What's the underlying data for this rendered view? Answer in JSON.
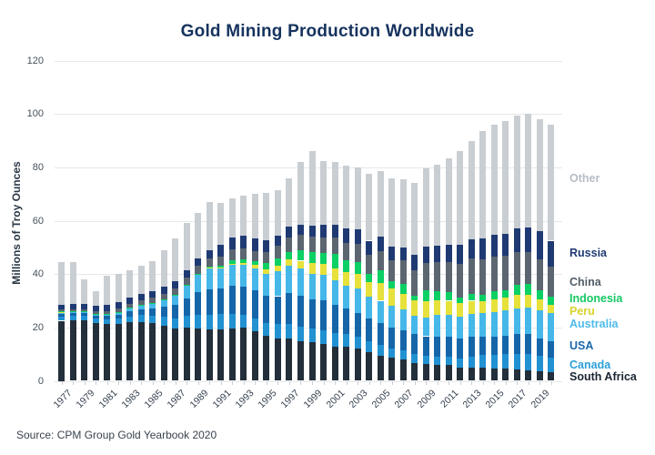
{
  "title": "Gold Mining Production Worldwide",
  "source": "Source: CPM Group Gold Yearbook 2020",
  "y_axis": {
    "label": "Millions of Troy Ounces",
    "ticks": [
      0,
      20,
      40,
      60,
      80,
      100,
      120
    ],
    "max": 120
  },
  "x_tick_labels": [
    "1977",
    "1979",
    "1981",
    "1983",
    "1985",
    "1987",
    "1989",
    "1991",
    "1993",
    "1995",
    "1997",
    "1999",
    "2001",
    "2003",
    "2005",
    "2007",
    "2009",
    "2011",
    "2013",
    "2015",
    "2017",
    "2019"
  ],
  "colors": {
    "background": "#ffffff",
    "title": "#16335e",
    "gridline": "#e5e8ea"
  },
  "chart_data": {
    "type": "bar",
    "stacked": true,
    "title": "Gold Mining Production Worldwide",
    "ylabel": "Millions of Troy Ounces",
    "ylim": [
      0,
      120
    ],
    "grid": true,
    "legend_position": "right",
    "x": [
      1977,
      1978,
      1979,
      1980,
      1981,
      1982,
      1983,
      1984,
      1985,
      1986,
      1987,
      1988,
      1989,
      1990,
      1991,
      1992,
      1993,
      1994,
      1995,
      1996,
      1997,
      1998,
      1999,
      2000,
      2001,
      2002,
      2003,
      2004,
      2005,
      2006,
      2007,
      2008,
      2009,
      2010,
      2011,
      2012,
      2013,
      2014,
      2015,
      2016,
      2017,
      2018,
      2019,
      2020
    ],
    "series": [
      {
        "name": "South Africa",
        "color": "#232f3a",
        "values": [
          22.5,
          22.7,
          22.7,
          21.7,
          21.2,
          21.3,
          21.9,
          22.0,
          21.6,
          20.6,
          19.5,
          20.0,
          19.5,
          19.4,
          19.3,
          19.7,
          19.9,
          18.6,
          16.8,
          15.9,
          15.8,
          14.9,
          14.5,
          13.8,
          12.7,
          12.7,
          12.0,
          10.8,
          9.5,
          8.7,
          8.1,
          6.8,
          6.4,
          6.1,
          5.8,
          5.0,
          5.1,
          4.9,
          4.7,
          4.6,
          4.4,
          4.0,
          3.6,
          3.2
        ]
      },
      {
        "name": "Canada",
        "color": "#2191d2",
        "values": [
          1.7,
          1.7,
          1.6,
          1.7,
          1.7,
          2.1,
          2.3,
          2.8,
          2.9,
          3.4,
          3.8,
          4.3,
          5.1,
          5.4,
          5.7,
          5.2,
          4.9,
          4.7,
          4.9,
          5.3,
          5.5,
          5.3,
          5.1,
          5.0,
          5.1,
          4.9,
          4.5,
          4.1,
          3.8,
          3.3,
          3.2,
          3.1,
          3.1,
          2.9,
          3.1,
          3.3,
          4.0,
          4.9,
          5.1,
          5.3,
          5.5,
          6.1,
          5.9,
          5.5
        ]
      },
      {
        "name": "USA",
        "color": "#1566a9",
        "values": [
          1.0,
          1.0,
          1.0,
          1.0,
          1.4,
          1.4,
          2.0,
          2.1,
          2.5,
          3.8,
          5.0,
          6.5,
          8.6,
          9.5,
          9.5,
          10.6,
          10.6,
          10.5,
          10.2,
          10.5,
          11.6,
          11.8,
          11.0,
          11.3,
          10.8,
          9.6,
          8.9,
          8.3,
          8.2,
          8.1,
          7.7,
          7.5,
          7.2,
          7.4,
          7.5,
          7.6,
          7.4,
          6.8,
          6.9,
          7.1,
          7.6,
          7.3,
          6.4,
          6.1
        ]
      },
      {
        "name": "Australia",
        "color": "#45b7e8",
        "values": [
          0.6,
          0.6,
          0.6,
          0.5,
          0.6,
          0.9,
          1.0,
          1.3,
          1.9,
          2.4,
          3.6,
          5.0,
          6.6,
          7.8,
          7.6,
          7.8,
          7.9,
          8.2,
          8.2,
          9.3,
          10.1,
          10.0,
          9.6,
          9.5,
          9.2,
          8.5,
          9.1,
          8.3,
          8.5,
          7.9,
          7.9,
          6.9,
          7.1,
          8.4,
          8.3,
          8.0,
          8.6,
          8.8,
          9.0,
          9.3,
          9.7,
          10.1,
          10.4,
          10.5
        ]
      },
      {
        "name": "Peru",
        "color": "#e6e13b",
        "values": [
          0.1,
          0.1,
          0.1,
          0.1,
          0.1,
          0.1,
          0.1,
          0.1,
          0.2,
          0.2,
          0.2,
          0.2,
          0.2,
          0.3,
          0.4,
          0.6,
          0.9,
          1.3,
          1.8,
          2.1,
          2.5,
          3.0,
          4.1,
          4.3,
          4.4,
          5.0,
          5.5,
          5.6,
          6.7,
          6.5,
          5.5,
          5.8,
          5.9,
          5.3,
          5.3,
          5.2,
          4.9,
          4.5,
          4.7,
          4.9,
          4.9,
          4.6,
          4.2,
          3.2
        ]
      },
      {
        "name": "Indonesia",
        "color": "#0bd064",
        "values": [
          0.1,
          0.1,
          0.1,
          0.1,
          0.1,
          0.1,
          0.1,
          0.1,
          0.1,
          0.1,
          0.1,
          0.1,
          0.2,
          0.4,
          0.6,
          1.2,
          1.4,
          1.4,
          2.1,
          2.7,
          2.9,
          4.0,
          4.1,
          4.0,
          5.2,
          4.5,
          4.5,
          3.0,
          4.6,
          2.7,
          3.8,
          1.9,
          4.2,
          3.4,
          3.1,
          2.2,
          2.7,
          2.2,
          3.1,
          2.6,
          3.7,
          4.3,
          3.5,
          3.2
        ]
      },
      {
        "name": "China",
        "color": "#5b6671",
        "values": [
          0.6,
          0.6,
          0.7,
          0.9,
          1.1,
          1.3,
          1.5,
          1.7,
          1.9,
          2.2,
          2.5,
          2.7,
          2.9,
          3.2,
          3.5,
          4.0,
          4.1,
          4.0,
          4.4,
          4.7,
          5.3,
          5.7,
          5.6,
          5.8,
          6.2,
          6.5,
          6.8,
          7.0,
          7.4,
          7.9,
          8.9,
          9.4,
          10.4,
          11.0,
          11.5,
          12.5,
          13.0,
          13.5,
          13.2,
          13.0,
          12.5,
          12.0,
          11.5,
          11.0
        ]
      },
      {
        "name": "Russia",
        "color": "#1f3a73",
        "values": [
          2.0,
          2.0,
          2.1,
          2.1,
          2.2,
          2.2,
          2.3,
          2.3,
          2.4,
          2.5,
          2.6,
          2.7,
          2.8,
          3.0,
          4.3,
          4.7,
          4.8,
          4.6,
          4.2,
          4.0,
          4.0,
          3.7,
          4.1,
          4.6,
          4.9,
          5.5,
          5.5,
          5.4,
          5.3,
          5.1,
          5.0,
          5.7,
          6.1,
          6.2,
          6.4,
          7.0,
          7.4,
          7.9,
          8.1,
          8.1,
          8.7,
          9.0,
          10.6,
          9.8
        ]
      },
      {
        "name": "Other",
        "color": "#c9ced3",
        "values": [
          15.9,
          15.7,
          9.1,
          5.4,
          11.1,
          10.6,
          10.3,
          10.6,
          11.5,
          13.8,
          16.2,
          17.5,
          17.1,
          18.0,
          15.6,
          14.7,
          15.0,
          16.7,
          17.9,
          17.0,
          18.3,
          23.6,
          27.9,
          24.2,
          23.5,
          23.3,
          23.2,
          25.0,
          24.5,
          25.8,
          25.4,
          26.9,
          29.1,
          30.3,
          32.5,
          35.2,
          36.9,
          40.0,
          41.2,
          42.6,
          42.5,
          42.6,
          41.9,
          43.5
        ]
      }
    ],
    "legend": [
      {
        "label": "Other",
        "text_color": "#b7bdc5",
        "y": 189
      },
      {
        "label": "Russia",
        "text_color": "#1f3a73",
        "y": 271
      },
      {
        "label": "China",
        "text_color": "#505c68",
        "y": 303
      },
      {
        "label": "Indonesia",
        "text_color": "#16c863",
        "y": 321
      },
      {
        "label": "Peru",
        "text_color": "#d8d32f",
        "y": 335
      },
      {
        "label": "Australia",
        "text_color": "#4fbbea",
        "y": 349
      },
      {
        "label": "USA",
        "text_color": "#1b67ab",
        "y": 373
      },
      {
        "label": "Canada",
        "text_color": "#2d9fd8",
        "y": 394
      },
      {
        "label": "South Africa",
        "text_color": "#1b2633",
        "y": 407
      }
    ]
  }
}
